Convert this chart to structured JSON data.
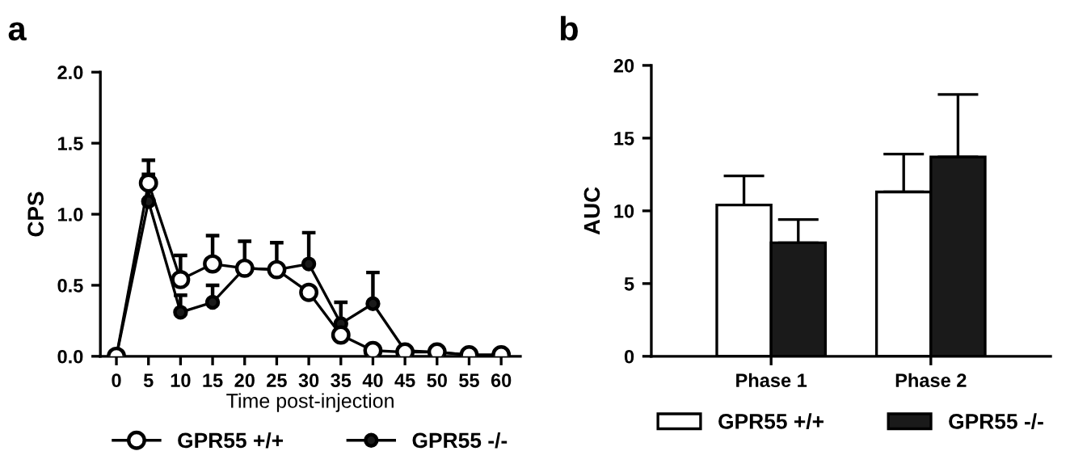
{
  "chart_data": [
    {
      "type": "line",
      "title": "a",
      "xlabel": "Time post-injection",
      "ylabel": "CPS",
      "x": [
        0,
        5,
        10,
        15,
        20,
        25,
        30,
        35,
        40,
        45,
        50,
        55,
        60
      ],
      "series": [
        {
          "name": "GPR55 +/+",
          "color": "#ffffff",
          "values": [
            0,
            1.22,
            0.54,
            0.65,
            0.62,
            0.61,
            0.45,
            0.15,
            0.04,
            0.03,
            0.03,
            0.01,
            0.01
          ],
          "errors": [
            null,
            [
              1.22,
              1.28
            ],
            [
              0.54,
              0.71
            ],
            [
              0.65,
              0.85
            ],
            [
              0.62,
              0.81
            ],
            [
              0.61,
              0.8
            ],
            null,
            null,
            null,
            null,
            null,
            null,
            null
          ]
        },
        {
          "name": "GPR55 -/-",
          "color": "#1a1a1a",
          "values": [
            0,
            1.09,
            0.31,
            0.38,
            0.62,
            0.61,
            0.65,
            0.23,
            0.37,
            0.04,
            0.03,
            0.01,
            0.01
          ],
          "errors": [
            null,
            [
              1.09,
              1.38
            ],
            [
              0.31,
              0.43
            ],
            [
              0.38,
              0.5
            ],
            null,
            null,
            [
              0.65,
              0.87
            ],
            [
              0.23,
              0.38
            ],
            [
              0.37,
              0.59
            ],
            null,
            null,
            null,
            null
          ]
        }
      ],
      "xlim": [
        -2.5,
        63
      ],
      "xticks": [
        0,
        5,
        10,
        15,
        20,
        25,
        30,
        35,
        40,
        45,
        50,
        55,
        60
      ],
      "ylim": [
        0,
        2.0
      ],
      "yticks": [
        {
          "value": 0,
          "label": "0.0"
        },
        {
          "value": 0.5,
          "label": "0.5"
        },
        {
          "value": 1.0,
          "label": "1.0"
        },
        {
          "value": 1.5,
          "label": "1.5"
        },
        {
          "value": 2.0,
          "label": "2.0"
        }
      ],
      "marker": "circle",
      "legend": "bottom",
      "grid": false
    },
    {
      "type": "bar",
      "title": "b",
      "ylabel": "AUC",
      "categories": [
        "Phase 1",
        "Phase 2"
      ],
      "series": [
        {
          "name": "GPR55 +/+",
          "color": "#ffffff",
          "values": [
            10.4,
            11.3
          ],
          "errors": [
            [
              10.4,
              12.4
            ],
            [
              11.3,
              13.9
            ]
          ]
        },
        {
          "name": "GPR55 -/-",
          "color": "#1a1a1a",
          "values": [
            7.8,
            13.7
          ],
          "errors": [
            [
              7.8,
              9.4
            ],
            [
              13.7,
              18.0
            ]
          ]
        }
      ],
      "ylim": [
        0,
        20
      ],
      "yticks": [
        0,
        5,
        10,
        15,
        20
      ],
      "legend": "bottom",
      "grid": false
    }
  ]
}
